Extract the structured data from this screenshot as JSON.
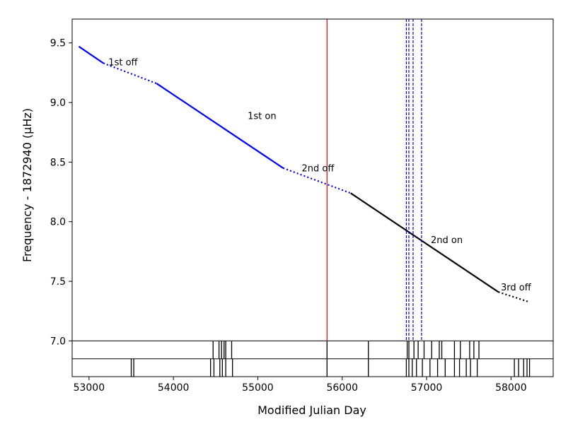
{
  "chart_data": {
    "type": "line",
    "xlabel": "Modified Julian Day",
    "ylabel": "Frequency - 1872940 (μHz)",
    "xlim": [
      52800,
      58500
    ],
    "ylim": [
      6.7,
      9.7
    ],
    "xticks": [
      53000,
      54000,
      55000,
      56000,
      57000,
      58000
    ],
    "xtick_labels": [
      "53000",
      "54000",
      "55000",
      "56000",
      "57000",
      "58000"
    ],
    "yticks": [
      7.0,
      7.5,
      8.0,
      8.5,
      9.0,
      9.5
    ],
    "ytick_labels": [
      "7.0",
      "7.5",
      "8.0",
      "8.5",
      "9.0",
      "9.5"
    ],
    "grid": false,
    "lower_strip": {
      "y_range": [
        6.7,
        7.0
      ],
      "divider_y": 6.85
    },
    "series": [
      {
        "color": "#0000ff",
        "style": "solid",
        "points": [
          [
            52880,
            9.47
          ],
          [
            53170,
            9.33
          ]
        ]
      },
      {
        "color": "#0000ff",
        "style": "dotted",
        "points": [
          [
            53170,
            9.33
          ],
          [
            53800,
            9.16
          ]
        ]
      },
      {
        "color": "#0000ff",
        "style": "solid",
        "points": [
          [
            53800,
            9.16
          ],
          [
            55300,
            8.45
          ]
        ]
      },
      {
        "color": "#0000ff",
        "style": "dotted",
        "points": [
          [
            55300,
            8.45
          ],
          [
            56100,
            8.24
          ]
        ]
      },
      {
        "color": "#000000",
        "style": "solid",
        "points": [
          [
            56100,
            8.24
          ],
          [
            57850,
            7.41
          ]
        ]
      },
      {
        "color": "#000000",
        "style": "dotted",
        "points": [
          [
            57850,
            7.41
          ],
          [
            58200,
            7.33
          ]
        ]
      }
    ],
    "annotations": [
      {
        "text": "1st off",
        "x": 53230,
        "y": 9.3
      },
      {
        "text": "1st on",
        "x": 54880,
        "y": 8.85
      },
      {
        "text": "2nd off",
        "x": 55520,
        "y": 8.41
      },
      {
        "text": "2nd on",
        "x": 57050,
        "y": 7.81
      },
      {
        "text": "3rd off",
        "x": 57880,
        "y": 7.41
      }
    ],
    "vlines": [
      {
        "x": 55820,
        "color": "#e8141a",
        "style": "solid"
      },
      {
        "x": 56760,
        "color": "#0000ff",
        "style": "dashed"
      },
      {
        "x": 56790,
        "color": "#0000ff",
        "style": "dashed"
      },
      {
        "x": 56840,
        "color": "#0000ff",
        "style": "dashed"
      },
      {
        "x": 56940,
        "color": "#0000ff",
        "style": "dashed"
      }
    ],
    "events_upper": [
      54470,
      54540,
      54570,
      54600,
      54620,
      54690,
      55820,
      56310,
      56770,
      56790,
      56850,
      56900,
      56970,
      57060,
      57150,
      57180,
      57330,
      57400,
      57510,
      57560,
      57620
    ],
    "events_lower": [
      53500,
      53530,
      54440,
      54480,
      54550,
      54580,
      54620,
      54700,
      55820,
      56310,
      56760,
      56790,
      56830,
      56880,
      56950,
      57040,
      57130,
      57220,
      57330,
      57390,
      57470,
      57520,
      57600,
      58040,
      58090,
      58150,
      58190,
      58220
    ]
  }
}
